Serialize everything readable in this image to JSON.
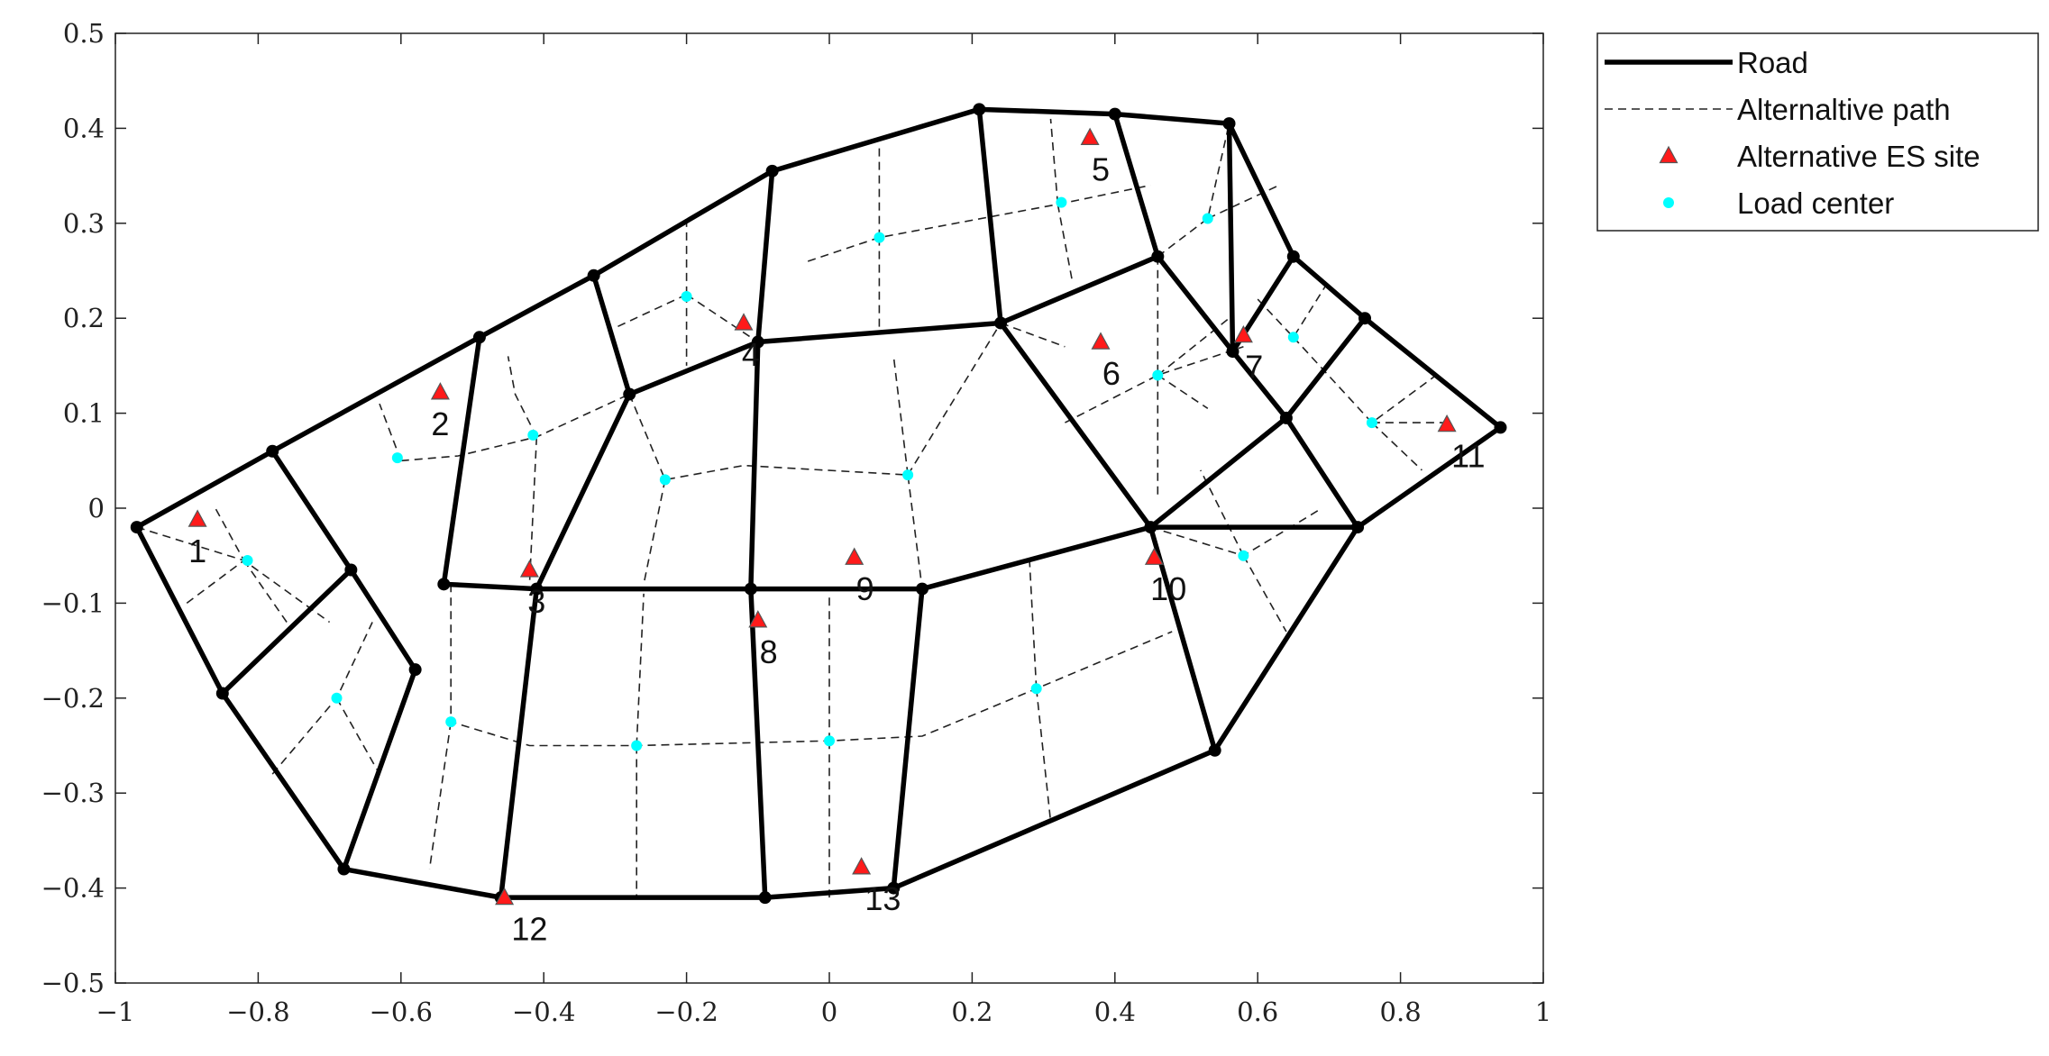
{
  "chart_data": {
    "type": "scatter",
    "title": "",
    "xlabel": "",
    "ylabel": "",
    "xlim": [
      -1,
      1
    ],
    "ylim": [
      -0.5,
      0.5
    ],
    "xticks": [
      -1,
      -0.8,
      -0.6,
      -0.4,
      -0.2,
      0,
      0.2,
      0.4,
      0.6,
      0.8,
      1
    ],
    "xtick_labels": [
      "−1",
      "−0.8",
      "−0.6",
      "−0.4",
      "−0.2",
      "0",
      "0.2",
      "0.4",
      "0.6",
      "0.8",
      "1"
    ],
    "yticks": [
      0.5,
      0.4,
      0.3,
      0.2,
      0.1,
      0,
      -0.1,
      -0.2,
      -0.3,
      -0.4,
      -0.5
    ],
    "ytick_labels": [
      "0.5",
      "0.4",
      "0.3",
      "0.2",
      "0.1",
      "0",
      "−0.1",
      "−0.2",
      "−0.3",
      "−0.4",
      "−0.5"
    ],
    "grid": false,
    "legend_position": "outside-top-right",
    "legend": [
      {
        "label": "Road",
        "style": "road"
      },
      {
        "label": "Alternaltive path",
        "style": "path"
      },
      {
        "label": "Alternative ES site",
        "style": "site"
      },
      {
        "label": "Load center",
        "style": "load"
      }
    ],
    "colors": {
      "road": "#000000",
      "path": "#222222",
      "site": "#ff1a1a",
      "load": "#00ffff"
    },
    "road_nodes": {
      "A": [
        -0.97,
        -0.02
      ],
      "B": [
        -0.78,
        0.06
      ],
      "C": [
        -0.49,
        0.18
      ],
      "D": [
        -0.33,
        0.245
      ],
      "E": [
        -0.08,
        0.355
      ],
      "F": [
        0.21,
        0.42
      ],
      "G": [
        0.4,
        0.415
      ],
      "H": [
        0.56,
        0.405
      ],
      "I": [
        0.65,
        0.265
      ],
      "J": [
        0.75,
        0.2
      ],
      "K": [
        0.94,
        0.085
      ],
      "L": [
        -0.85,
        -0.195
      ],
      "M": [
        -0.67,
        -0.065
      ],
      "N": [
        -0.58,
        -0.17
      ],
      "O": [
        -0.54,
        -0.08
      ],
      "P": [
        -0.41,
        -0.085
      ],
      "Q": [
        -0.28,
        0.12
      ],
      "R": [
        -0.1,
        0.175
      ],
      "S": [
        0.24,
        0.195
      ],
      "T": [
        0.46,
        0.265
      ],
      "U": [
        0.565,
        0.165
      ],
      "V": [
        0.64,
        0.095
      ],
      "W": [
        0.74,
        -0.02
      ],
      "X": [
        0.45,
        -0.02
      ],
      "Y": [
        -0.11,
        -0.085
      ],
      "Z": [
        0.13,
        -0.085
      ],
      "AA": [
        -0.68,
        -0.38
      ],
      "AB": [
        -0.46,
        -0.41
      ],
      "AC": [
        -0.09,
        -0.41
      ],
      "AD": [
        0.09,
        -0.4
      ],
      "AE": [
        0.54,
        -0.255
      ]
    },
    "road_segments": [
      [
        "A",
        "B"
      ],
      [
        "B",
        "C"
      ],
      [
        "C",
        "D"
      ],
      [
        "D",
        "E"
      ],
      [
        "E",
        "F"
      ],
      [
        "F",
        "G"
      ],
      [
        "G",
        "H"
      ],
      [
        "H",
        "I"
      ],
      [
        "I",
        "J"
      ],
      [
        "J",
        "K"
      ],
      [
        "K",
        "W"
      ],
      [
        "W",
        "AE"
      ],
      [
        "AE",
        "AD"
      ],
      [
        "AD",
        "AC"
      ],
      [
        "AC",
        "AB"
      ],
      [
        "AB",
        "AA"
      ],
      [
        "AA",
        "L"
      ],
      [
        "L",
        "A"
      ],
      [
        "B",
        "M"
      ],
      [
        "M",
        "L"
      ],
      [
        "M",
        "N"
      ],
      [
        "N",
        "AA"
      ],
      [
        "C",
        "O"
      ],
      [
        "O",
        "P"
      ],
      [
        "P",
        "Y"
      ],
      [
        "Y",
        "Z"
      ],
      [
        "Z",
        "X"
      ],
      [
        "X",
        "W"
      ],
      [
        "D",
        "Q"
      ],
      [
        "Q",
        "R"
      ],
      [
        "R",
        "S"
      ],
      [
        "S",
        "T"
      ],
      [
        "T",
        "U"
      ],
      [
        "U",
        "V"
      ],
      [
        "V",
        "W"
      ],
      [
        "G",
        "T"
      ],
      [
        "F",
        "S"
      ],
      [
        "E",
        "R"
      ],
      [
        "R",
        "Y"
      ],
      [
        "Y",
        "AC"
      ],
      [
        "Z",
        "AD"
      ],
      [
        "P",
        "AB"
      ],
      [
        "Q",
        "P"
      ],
      [
        "S",
        "X"
      ],
      [
        "X",
        "AE"
      ],
      [
        "I",
        "U"
      ],
      [
        "U",
        "H"
      ],
      [
        "J",
        "V"
      ],
      [
        "V",
        "X"
      ]
    ],
    "alternative_paths": [
      [
        [
          -0.97,
          -0.02
        ],
        [
          -0.82,
          -0.055
        ],
        [
          -0.7,
          -0.12
        ]
      ],
      [
        [
          -0.9,
          -0.1
        ],
        [
          -0.82,
          -0.055
        ],
        [
          -0.86,
          0.0
        ]
      ],
      [
        [
          -0.76,
          -0.12
        ],
        [
          -0.82,
          -0.055
        ]
      ],
      [
        [
          -0.78,
          -0.28
        ],
        [
          -0.69,
          -0.2
        ],
        [
          -0.64,
          -0.12
        ]
      ],
      [
        [
          -0.69,
          -0.2
        ],
        [
          -0.63,
          -0.28
        ]
      ],
      [
        [
          -0.6,
          0.05
        ],
        [
          -0.52,
          0.055
        ],
        [
          -0.41,
          0.075
        ],
        [
          -0.28,
          0.12
        ]
      ],
      [
        [
          -0.6,
          0.05
        ],
        [
          -0.63,
          0.11
        ]
      ],
      [
        [
          -0.41,
          0.075
        ],
        [
          -0.42,
          -0.08
        ]
      ],
      [
        [
          -0.41,
          0.075
        ],
        [
          -0.44,
          0.12
        ],
        [
          -0.45,
          0.16
        ]
      ],
      [
        [
          -0.53,
          -0.08
        ],
        [
          -0.53,
          -0.225
        ],
        [
          -0.42,
          -0.25
        ],
        [
          -0.27,
          -0.25
        ],
        [
          0.0,
          -0.245
        ],
        [
          0.13,
          -0.24
        ],
        [
          0.29,
          -0.19
        ],
        [
          0.48,
          -0.13
        ]
      ],
      [
        [
          -0.53,
          -0.225
        ],
        [
          -0.56,
          -0.38
        ]
      ],
      [
        [
          -0.27,
          -0.25
        ],
        [
          -0.27,
          -0.41
        ]
      ],
      [
        [
          -0.27,
          -0.25
        ],
        [
          -0.26,
          -0.09
        ]
      ],
      [
        [
          0.0,
          -0.245
        ],
        [
          0.0,
          -0.41
        ]
      ],
      [
        [
          0.0,
          -0.245
        ],
        [
          0.0,
          -0.09
        ]
      ],
      [
        [
          0.29,
          -0.19
        ],
        [
          0.31,
          -0.33
        ]
      ],
      [
        [
          0.29,
          -0.19
        ],
        [
          0.28,
          -0.05
        ]
      ],
      [
        [
          -0.28,
          0.12
        ],
        [
          -0.23,
          0.03
        ],
        [
          -0.12,
          0.045
        ],
        [
          0.11,
          0.035
        ],
        [
          0.13,
          -0.085
        ]
      ],
      [
        [
          -0.23,
          0.03
        ],
        [
          -0.26,
          -0.08
        ]
      ],
      [
        [
          0.11,
          0.035
        ],
        [
          0.09,
          0.16
        ]
      ],
      [
        [
          0.11,
          0.035
        ],
        [
          0.24,
          0.195
        ]
      ],
      [
        [
          -0.2,
          0.225
        ],
        [
          -0.3,
          0.19
        ]
      ],
      [
        [
          -0.2,
          0.225
        ],
        [
          -0.2,
          0.15
        ]
      ],
      [
        [
          -0.2,
          0.225
        ],
        [
          -0.2,
          0.3
        ]
      ],
      [
        [
          -0.2,
          0.225
        ],
        [
          -0.1,
          0.175
        ]
      ],
      [
        [
          -0.03,
          0.26
        ],
        [
          0.07,
          0.285
        ],
        [
          0.32,
          0.32
        ],
        [
          0.45,
          0.34
        ]
      ],
      [
        [
          0.07,
          0.285
        ],
        [
          0.07,
          0.38
        ]
      ],
      [
        [
          0.07,
          0.285
        ],
        [
          0.07,
          0.185
        ]
      ],
      [
        [
          0.32,
          0.32
        ],
        [
          0.31,
          0.41
        ]
      ],
      [
        [
          0.32,
          0.32
        ],
        [
          0.34,
          0.24
        ]
      ],
      [
        [
          0.24,
          0.195
        ],
        [
          0.33,
          0.17
        ]
      ],
      [
        [
          0.46,
          0.265
        ],
        [
          0.46,
          0.14
        ],
        [
          0.46,
          0.01
        ]
      ],
      [
        [
          0.33,
          0.09
        ],
        [
          0.46,
          0.14
        ],
        [
          0.58,
          0.17
        ]
      ],
      [
        [
          0.46,
          0.14
        ],
        [
          0.53,
          0.105
        ]
      ],
      [
        [
          0.46,
          0.14
        ],
        [
          0.56,
          0.2
        ]
      ],
      [
        [
          0.46,
          0.265
        ],
        [
          0.53,
          0.305
        ],
        [
          0.56,
          0.405
        ]
      ],
      [
        [
          0.53,
          0.305
        ],
        [
          0.63,
          0.34
        ]
      ],
      [
        [
          0.6,
          0.22
        ],
        [
          0.65,
          0.18
        ],
        [
          0.7,
          0.24
        ]
      ],
      [
        [
          0.65,
          0.18
        ],
        [
          0.76,
          0.09
        ],
        [
          0.85,
          0.14
        ]
      ],
      [
        [
          0.76,
          0.09
        ],
        [
          0.83,
          0.04
        ]
      ],
      [
        [
          0.76,
          0.09
        ],
        [
          0.86,
          0.09
        ]
      ],
      [
        [
          0.45,
          -0.02
        ],
        [
          0.58,
          -0.05
        ],
        [
          0.69,
          0.0
        ]
      ],
      [
        [
          0.58,
          -0.05
        ],
        [
          0.64,
          -0.13
        ]
      ],
      [
        [
          0.58,
          -0.05
        ],
        [
          0.52,
          0.04
        ]
      ]
    ],
    "es_sites": [
      {
        "id": "1",
        "x": -0.885,
        "y": -0.012
      },
      {
        "id": "2",
        "x": -0.545,
        "y": 0.122
      },
      {
        "id": "3",
        "x": -0.42,
        "y": -0.065
      },
      {
        "id": "4",
        "x": -0.12,
        "y": 0.195
      },
      {
        "id": "5",
        "x": 0.365,
        "y": 0.39
      },
      {
        "id": "6",
        "x": 0.38,
        "y": 0.175
      },
      {
        "id": "7",
        "x": 0.58,
        "y": 0.182
      },
      {
        "id": "8",
        "x": -0.1,
        "y": -0.118
      },
      {
        "id": "9",
        "x": 0.035,
        "y": -0.052
      },
      {
        "id": "10",
        "x": 0.455,
        "y": -0.052
      },
      {
        "id": "11",
        "x": 0.865,
        "y": 0.088
      },
      {
        "id": "12",
        "x": -0.455,
        "y": -0.41
      },
      {
        "id": "13",
        "x": 0.045,
        "y": -0.378
      }
    ],
    "load_centers": [
      {
        "x": -0.815,
        "y": -0.055
      },
      {
        "x": -0.69,
        "y": -0.2
      },
      {
        "x": -0.605,
        "y": 0.053
      },
      {
        "x": -0.415,
        "y": 0.077
      },
      {
        "x": -0.53,
        "y": -0.225
      },
      {
        "x": -0.27,
        "y": -0.25
      },
      {
        "x": 0.0,
        "y": -0.245
      },
      {
        "x": -0.23,
        "y": 0.03
      },
      {
        "x": -0.2,
        "y": 0.223
      },
      {
        "x": 0.07,
        "y": 0.285
      },
      {
        "x": 0.11,
        "y": 0.035
      },
      {
        "x": 0.325,
        "y": 0.322
      },
      {
        "x": 0.46,
        "y": 0.14
      },
      {
        "x": 0.53,
        "y": 0.305
      },
      {
        "x": 0.65,
        "y": 0.18
      },
      {
        "x": 0.76,
        "y": 0.09
      },
      {
        "x": 0.58,
        "y": -0.05
      },
      {
        "x": 0.29,
        "y": -0.19
      }
    ],
    "es_label_offsets": {
      "1": [
        0.0,
        -0.045
      ],
      "2": [
        0.0,
        -0.045
      ],
      "3": [
        0.01,
        -0.045
      ],
      "4": [
        0.01,
        -0.045
      ],
      "5": [
        0.015,
        -0.045
      ],
      "6": [
        0.015,
        -0.045
      ],
      "7": [
        0.015,
        -0.045
      ],
      "8": [
        0.015,
        -0.045
      ],
      "9": [
        0.015,
        -0.045
      ],
      "10": [
        0.02,
        -0.045
      ],
      "11": [
        0.03,
        -0.045
      ],
      "12": [
        0.035,
        -0.045
      ],
      "13": [
        0.03,
        -0.045
      ]
    }
  }
}
